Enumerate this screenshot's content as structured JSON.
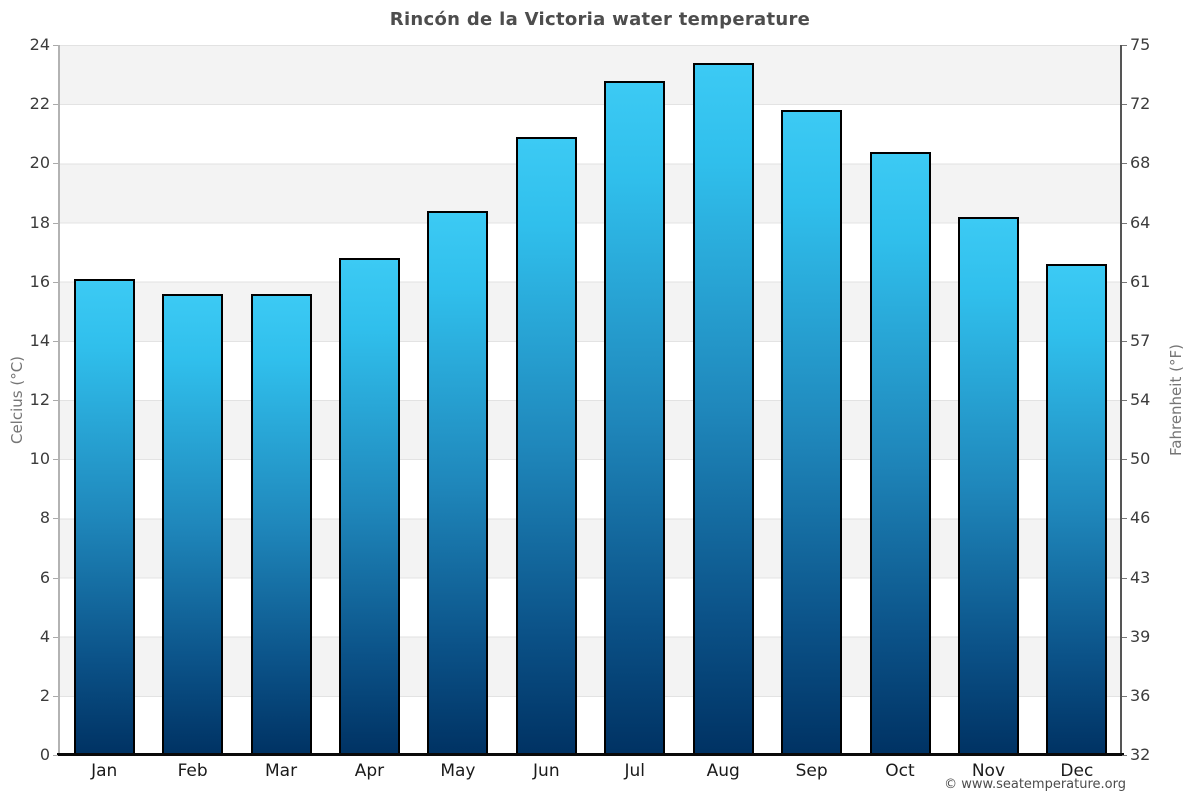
{
  "header": {
    "title": "Rincón de la Victoria water temperature"
  },
  "axes": {
    "left_title": "Celcius (°C)",
    "right_title": "Fahrenheit (°F)"
  },
  "footer": {
    "credit": "© www.seatemperature.org"
  },
  "chart_data": {
    "type": "bar",
    "title": "Rincón de la Victoria water temperature",
    "categories": [
      "Jan",
      "Feb",
      "Mar",
      "Apr",
      "May",
      "Jun",
      "Jul",
      "Aug",
      "Sep",
      "Oct",
      "Nov",
      "Dec"
    ],
    "values": [
      16.1,
      15.6,
      15.6,
      16.8,
      18.4,
      20.9,
      22.8,
      23.4,
      21.8,
      20.4,
      18.2,
      16.6
    ],
    "unit": "°C",
    "xlabel": "",
    "ylabel_left": "Celcius (°C)",
    "ylabel_right": "Fahrenheit (°F)",
    "ylim_celsius": [
      0,
      24
    ],
    "yticks_celsius": [
      24,
      22,
      20,
      18,
      16,
      14,
      12,
      10,
      8,
      6,
      4,
      2,
      0
    ],
    "yticks_fahrenheit": [
      75,
      72,
      68,
      64,
      61,
      57,
      54,
      50,
      46,
      43,
      39,
      36,
      32
    ],
    "grid": "alternating gray/white horizontal bands every 2°C, gray band at top (22–24)",
    "legend": "none",
    "colors": {
      "bar_gradient_top": "#3ccaf4",
      "bar_gradient_mid": "#1f87bb",
      "bar_gradient_bottom": "#003263",
      "bar_border": "#000000",
      "band_gray": "#f3f3f3",
      "band_white": "#ffffff",
      "left_axis_line": "#b3b3b3",
      "right_axis_line": "#555555",
      "baseline": "#0a0a0a",
      "title_text": "#4d4d4d",
      "tick_text": "#3c3c3c",
      "axis_title_text": "#757575",
      "credit_text": "#4c4c4c"
    }
  }
}
